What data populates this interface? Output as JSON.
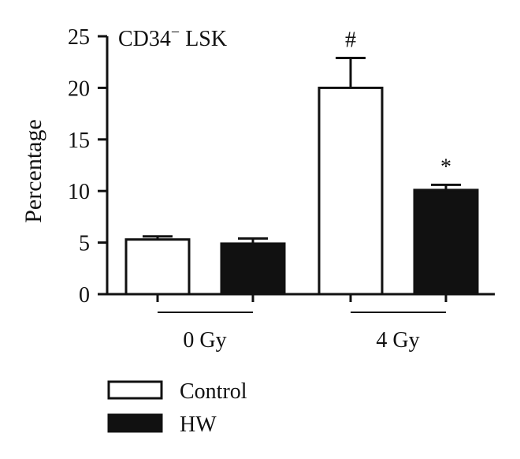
{
  "chart_data": {
    "type": "bar",
    "title": "CD34",
    "title_sup": "−",
    "title_suffix": " LSK",
    "ylabel": "Percentage",
    "ylim": [
      0,
      25
    ],
    "yticks": [
      0,
      5,
      10,
      15,
      20,
      25
    ],
    "categories": [
      "0 Gy",
      "4 Gy"
    ],
    "series": [
      {
        "name": "Control",
        "values": [
          5.3,
          20.0
        ],
        "errors": [
          0.3,
          2.9
        ],
        "color": "#ffffff"
      },
      {
        "name": "HW",
        "values": [
          4.9,
          10.1
        ],
        "errors": [
          0.5,
          0.5
        ],
        "color": "#111111"
      }
    ],
    "annotations": [
      {
        "series": 0,
        "category": 1,
        "text": "#"
      },
      {
        "series": 1,
        "category": 1,
        "text": "*"
      }
    ],
    "legend_position": "bottom-left",
    "grid": false
  }
}
